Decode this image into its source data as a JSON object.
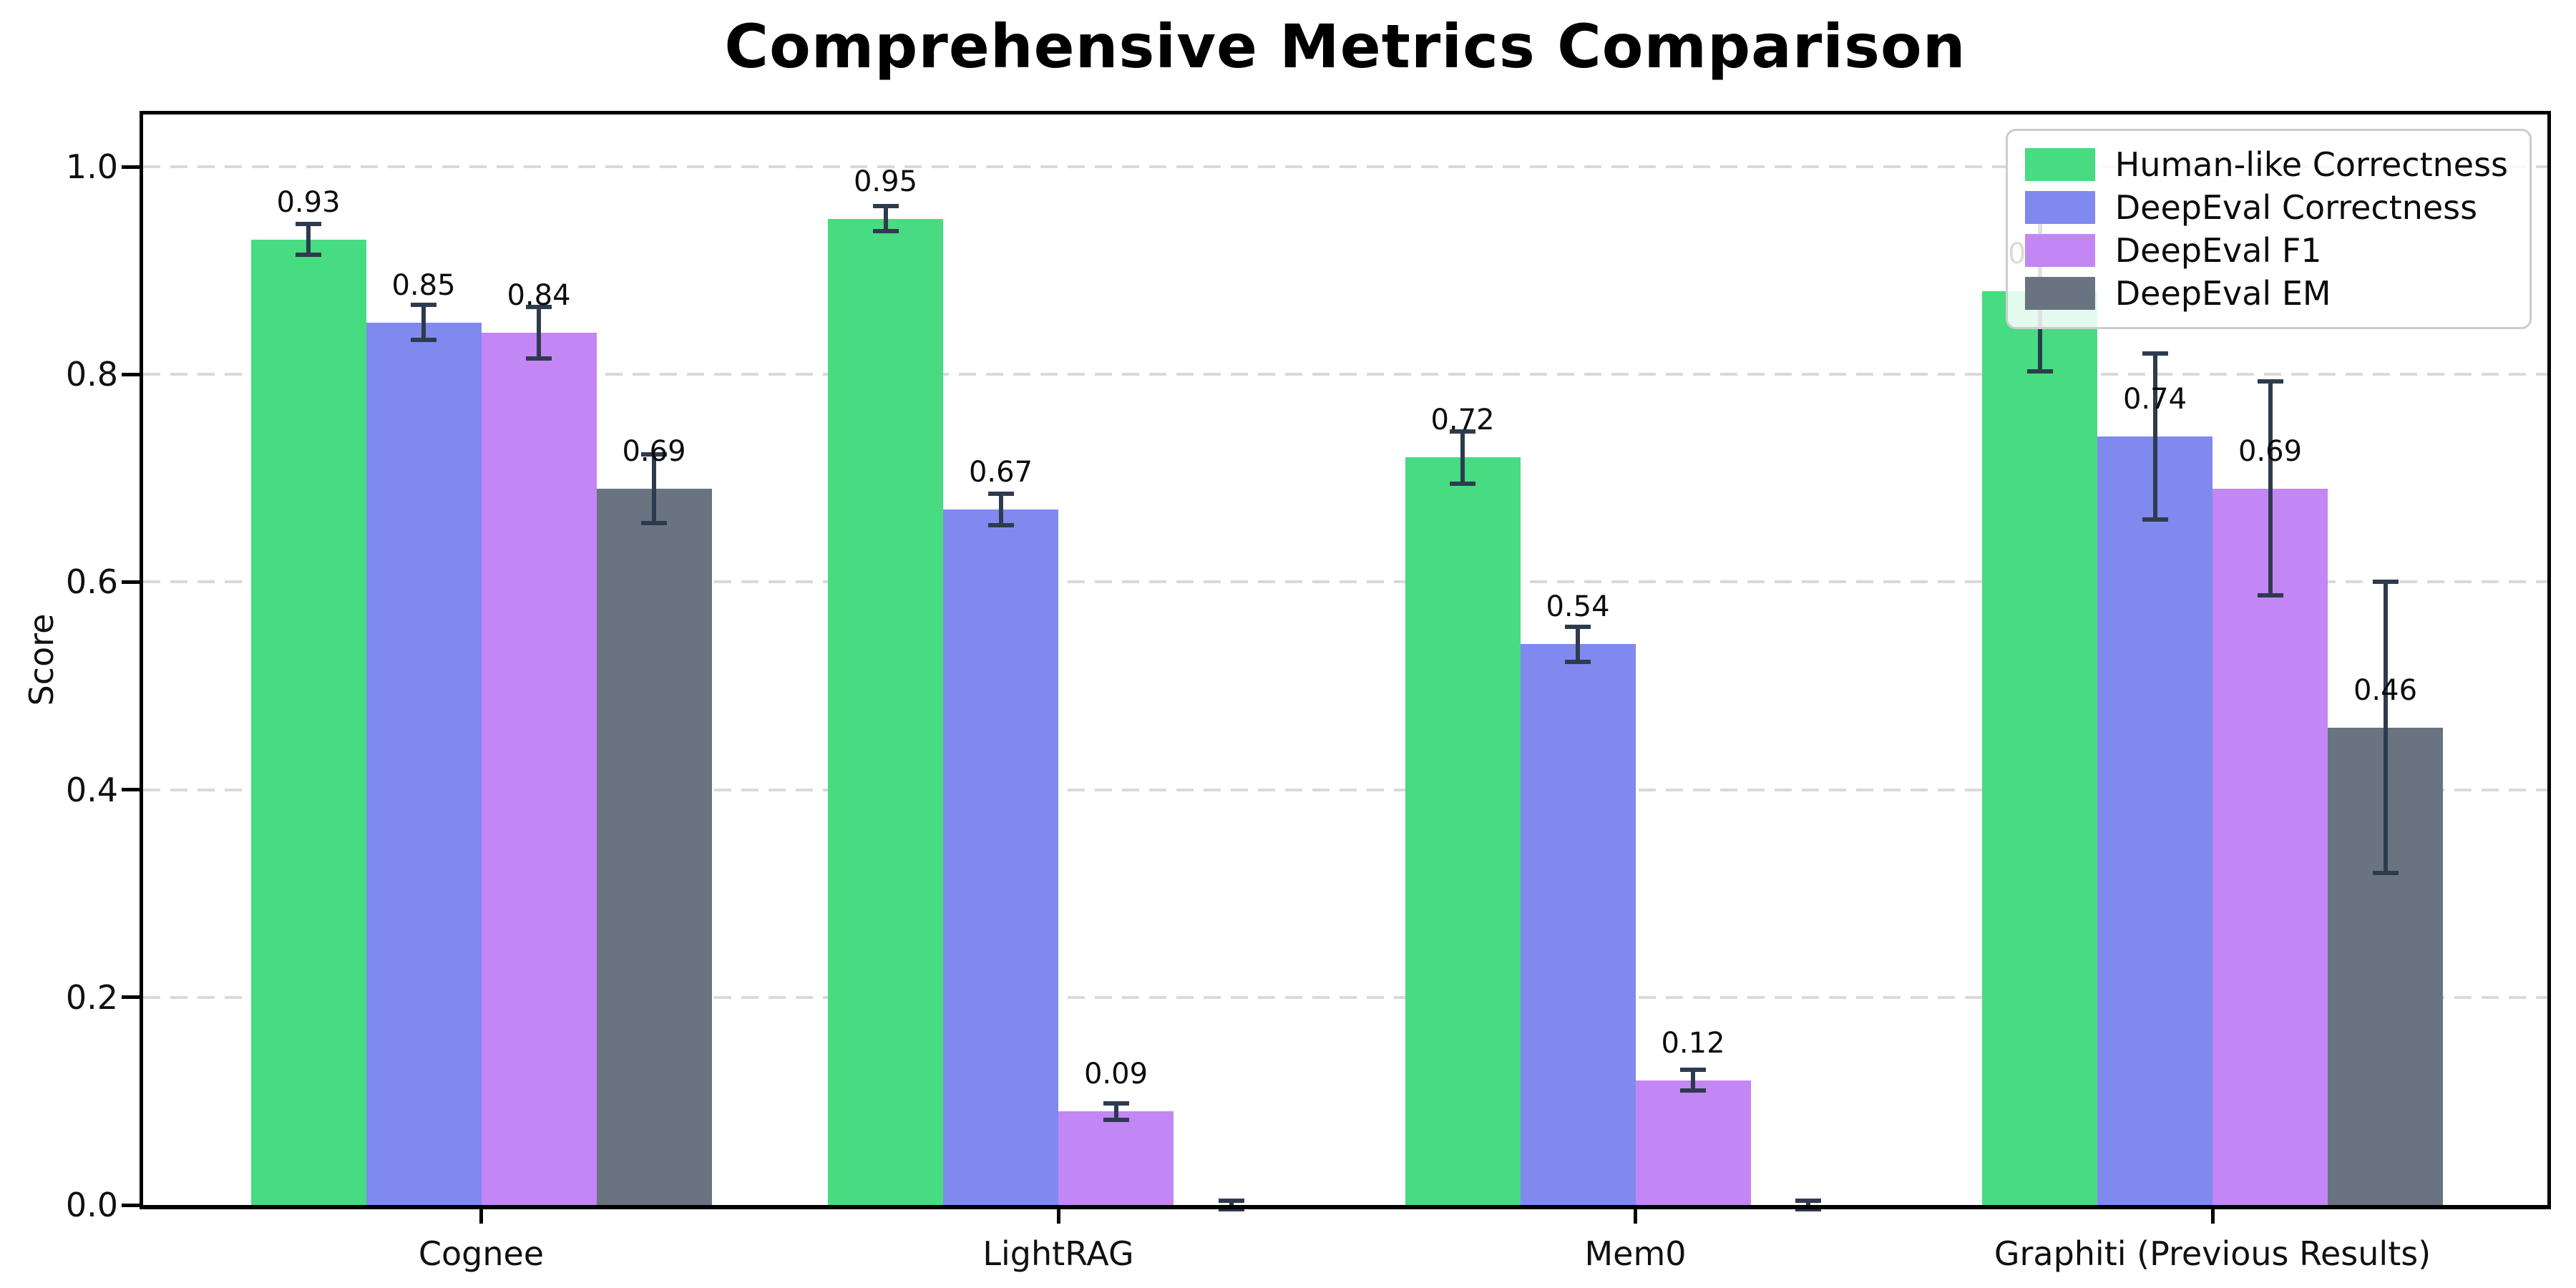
{
  "chart_data": {
    "type": "bar",
    "title": "Comprehensive Metrics Comparison",
    "ylabel": "Score",
    "xlabel": "",
    "categories": [
      "Cognee",
      "LightRAG",
      "Mem0",
      "Graphiti (Previous Results)"
    ],
    "series": [
      {
        "name": "Human-like Correctness",
        "color": "#47dc81",
        "values": [
          0.93,
          0.95,
          0.72,
          0.88
        ],
        "errors": [
          0.015,
          0.012,
          0.025,
          0.077
        ],
        "labels": [
          "0.93",
          "0.95",
          "0.72",
          "0.88"
        ]
      },
      {
        "name": "DeepEval Correctness",
        "color": "#8089ee",
        "values": [
          0.85,
          0.67,
          0.54,
          0.74
        ],
        "errors": [
          0.017,
          0.015,
          0.017,
          0.08
        ],
        "labels": [
          "0.85",
          "0.67",
          "0.54",
          "0.74"
        ]
      },
      {
        "name": "DeepEval F1",
        "color": "#c287f4",
        "values": [
          0.84,
          0.09,
          0.12,
          0.69
        ],
        "errors": [
          0.025,
          0.008,
          0.01,
          0.103
        ],
        "labels": [
          "0.84",
          "0.09",
          "0.12",
          "0.69"
        ]
      },
      {
        "name": "DeepEval EM",
        "color": "#6a7380",
        "values": [
          0.69,
          0.0,
          0.0,
          0.46
        ],
        "errors": [
          0.033,
          0.004,
          0.004,
          0.14
        ],
        "labels": [
          "0.69",
          "",
          "",
          "0.46"
        ]
      }
    ],
    "ytick_values": [
      0.0,
      0.2,
      0.4,
      0.6,
      0.8,
      1.0
    ],
    "ytick_labels": [
      "0.0",
      "0.2",
      "0.4",
      "0.6",
      "0.8",
      "1.0"
    ],
    "ylim": [
      0,
      1.05
    ],
    "grid": "horizontal-dashed",
    "grid_color": "#d9d9d9",
    "error_bar_color": "#2e3b4e",
    "legend_position": "upper right"
  }
}
